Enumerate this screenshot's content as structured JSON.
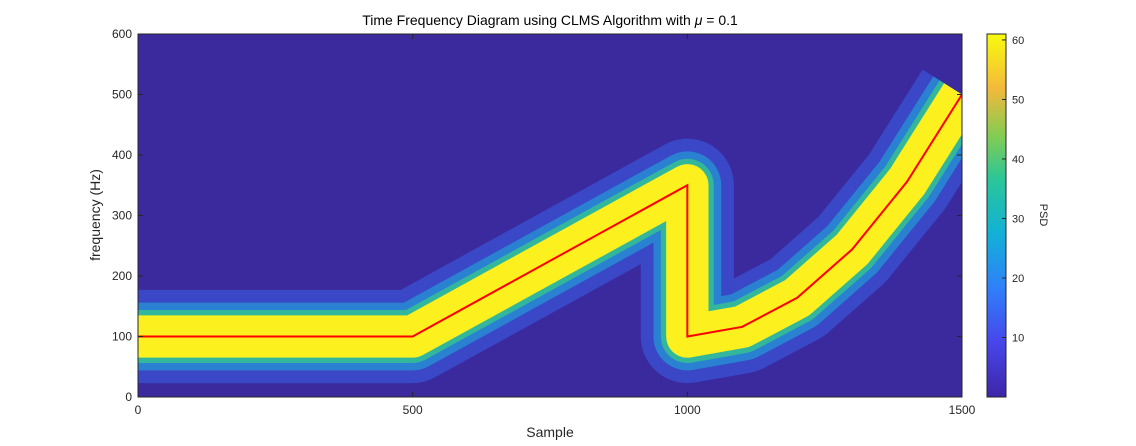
{
  "chart_data": {
    "type": "heatmap",
    "title": "Time Frequency Diagram using CLMS Algorithm with μ = 0.1",
    "title_prefix": "Time Frequency Diagram using CLMS Algorithm with ",
    "title_symbol": "μ",
    "title_suffix": " = 0.1",
    "xlabel": "Sample",
    "ylabel": "frequency (Hz)",
    "xlim": [
      0,
      1500
    ],
    "ylim": [
      0,
      600
    ],
    "xticks": [
      0,
      500,
      1000,
      1500
    ],
    "yticks": [
      0,
      100,
      200,
      300,
      400,
      500,
      600
    ],
    "colormap": "parula",
    "colorbar": {
      "label": "PSD",
      "range": [
        0,
        61
      ],
      "ticks": [
        10,
        20,
        30,
        40,
        50,
        60
      ]
    },
    "ridge_band_halfwidth_hz": 35,
    "line_color": "#ff0000",
    "background_color": "#3a2a9e",
    "ridge_color": "#fcf01e",
    "series": [
      {
        "type": "line",
        "x": [
          0,
          500,
          500,
          1000,
          1000,
          1000,
          1100,
          1200,
          1300,
          1400,
          1500
        ],
        "y": [
          100,
          100,
          100,
          350,
          350,
          100,
          116,
          164,
          244,
          356,
          500
        ]
      }
    ]
  }
}
